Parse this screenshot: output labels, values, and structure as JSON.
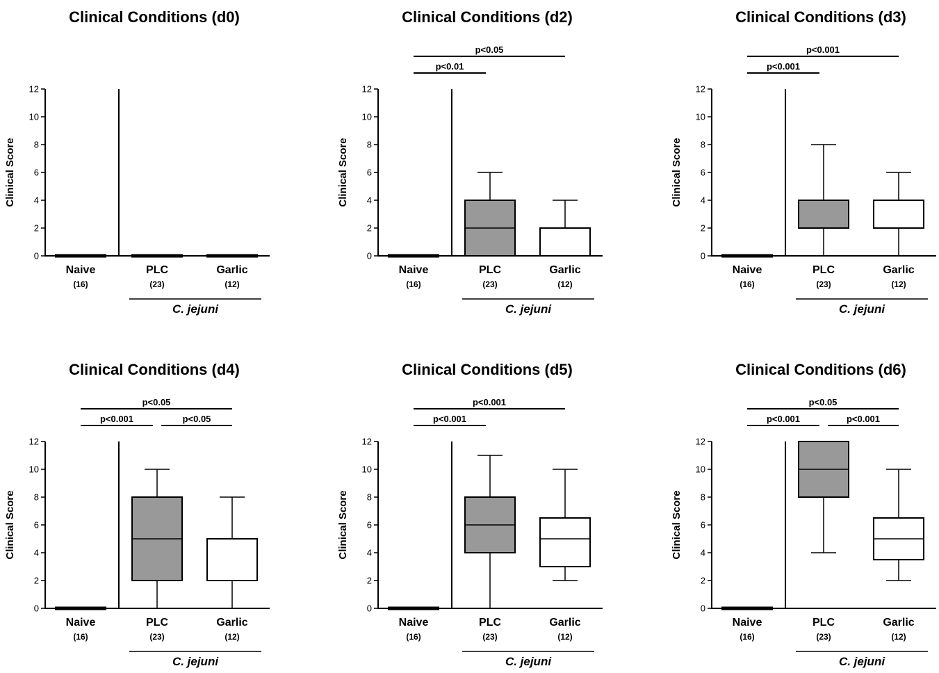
{
  "chart_data": [
    {
      "type": "box",
      "title": "Clinical Conditions (d0)",
      "ylabel": "Clinical Score",
      "ylim": [
        0,
        12
      ],
      "yticks": [
        0,
        2,
        4,
        6,
        8,
        10,
        12
      ],
      "categories": [
        {
          "label": "Naive",
          "n": "(16)",
          "min": 0,
          "q1": 0,
          "median": 0,
          "q3": 0,
          "max": 0,
          "fill": "#ffffff"
        },
        {
          "label": "PLC",
          "n": "(23)",
          "min": 0,
          "q1": 0,
          "median": 0,
          "q3": 0,
          "max": 0,
          "fill": "#ffffff"
        },
        {
          "label": "Garlic",
          "n": "(12)",
          "min": 0,
          "q1": 0,
          "median": 0,
          "q3": 0,
          "max": 0,
          "fill": "#ffffff"
        }
      ],
      "group_label": "C. jejuni",
      "comparisons": []
    },
    {
      "type": "box",
      "title": "Clinical Conditions (d2)",
      "ylabel": "Clinical  Score",
      "ylim": [
        0,
        12
      ],
      "yticks": [
        0,
        2,
        4,
        6,
        8,
        10,
        12
      ],
      "categories": [
        {
          "label": "Naive",
          "n": "(16)",
          "min": 0,
          "q1": 0,
          "median": 0,
          "q3": 0,
          "max": 0,
          "fill": "#ffffff"
        },
        {
          "label": "PLC",
          "n": "(23)",
          "min": 0,
          "q1": 0,
          "median": 2,
          "q3": 4,
          "max": 6,
          "fill": "#999999"
        },
        {
          "label": "Garlic",
          "n": "(12)",
          "min": 0,
          "q1": 0,
          "median": 2,
          "q3": 2,
          "max": 4,
          "fill": "#ffffff"
        }
      ],
      "group_label": "C. jejuni",
      "comparisons": [
        {
          "from": 0,
          "to": 2,
          "label": "p<0.05",
          "level": 2
        },
        {
          "from": 0,
          "to": 1,
          "label": "p<0.01",
          "level": 1
        }
      ]
    },
    {
      "type": "box",
      "title": "Clinical Conditions (d3)",
      "ylabel": "Clinical  Score",
      "ylim": [
        0,
        12
      ],
      "yticks": [
        0,
        2,
        4,
        6,
        8,
        10,
        12
      ],
      "categories": [
        {
          "label": "Naive",
          "n": "(16)",
          "min": 0,
          "q1": 0,
          "median": 0,
          "q3": 0,
          "max": 0,
          "fill": "#ffffff"
        },
        {
          "label": "PLC",
          "n": "(23)",
          "min": 0,
          "q1": 2,
          "median": 2,
          "q3": 4,
          "max": 8,
          "fill": "#999999"
        },
        {
          "label": "Garlic",
          "n": "(12)",
          "min": 0,
          "q1": 2,
          "median": 2,
          "q3": 4,
          "max": 6,
          "fill": "#ffffff"
        }
      ],
      "group_label": "C. jejuni",
      "comparisons": [
        {
          "from": 0,
          "to": 2,
          "label": "p<0.001",
          "level": 2
        },
        {
          "from": 0,
          "to": 1,
          "label": "p<0.001",
          "level": 1
        }
      ]
    },
    {
      "type": "box",
      "title": "Clinical Conditions (d4)",
      "ylabel": "Clinical  Score",
      "ylim": [
        0,
        12
      ],
      "yticks": [
        0,
        2,
        4,
        6,
        8,
        10,
        12
      ],
      "categories": [
        {
          "label": "Naive",
          "n": "(16)",
          "min": 0,
          "q1": 0,
          "median": 0,
          "q3": 0,
          "max": 0,
          "fill": "#ffffff"
        },
        {
          "label": "PLC",
          "n": "(23)",
          "min": 0,
          "q1": 2,
          "median": 5,
          "q3": 8,
          "max": 10,
          "fill": "#999999"
        },
        {
          "label": "Garlic",
          "n": "(12)",
          "min": 0,
          "q1": 2,
          "median": 2,
          "q3": 5,
          "max": 8,
          "fill": "#ffffff"
        }
      ],
      "group_label": "C. jejuni",
      "comparisons": [
        {
          "from": 0,
          "to": 2,
          "label": "p<0.05",
          "level": 2
        },
        {
          "from": 0,
          "to": 1,
          "label": "p<0.001",
          "level": 1
        },
        {
          "from": 1,
          "to": 2,
          "label": "p<0.05",
          "level": 1
        }
      ]
    },
    {
      "type": "box",
      "title": "Clinical Conditions (d5)",
      "ylabel": "Clinical  Score",
      "ylim": [
        0,
        12
      ],
      "yticks": [
        0,
        2,
        4,
        6,
        8,
        10,
        12
      ],
      "categories": [
        {
          "label": "Naive",
          "n": "(16)",
          "min": 0,
          "q1": 0,
          "median": 0,
          "q3": 0,
          "max": 0,
          "fill": "#ffffff"
        },
        {
          "label": "PLC",
          "n": "(23)",
          "min": 0,
          "q1": 4,
          "median": 6,
          "q3": 8,
          "max": 11,
          "fill": "#999999"
        },
        {
          "label": "Garlic",
          "n": "(12)",
          "min": 2,
          "q1": 3,
          "median": 5,
          "q3": 6.5,
          "max": 10,
          "fill": "#ffffff"
        }
      ],
      "group_label": "C. jejuni",
      "comparisons": [
        {
          "from": 0,
          "to": 2,
          "label": "p<0.001",
          "level": 2
        },
        {
          "from": 0,
          "to": 1,
          "label": "p<0.001",
          "level": 1
        }
      ]
    },
    {
      "type": "box",
      "title": "Clinical Conditions (d6)",
      "ylabel": "Clinical  Score",
      "ylim": [
        0,
        12
      ],
      "yticks": [
        0,
        2,
        4,
        6,
        8,
        10,
        12
      ],
      "categories": [
        {
          "label": "Naive",
          "n": "(16)",
          "min": 0,
          "q1": 0,
          "median": 0,
          "q3": 0,
          "max": 0,
          "fill": "#ffffff"
        },
        {
          "label": "PLC",
          "n": "(23)",
          "min": 4,
          "q1": 8,
          "median": 10,
          "q3": 12,
          "max": 12,
          "fill": "#999999"
        },
        {
          "label": "Garlic",
          "n": "(12)",
          "min": 2,
          "q1": 3.5,
          "median": 5,
          "q3": 6.5,
          "max": 10,
          "fill": "#ffffff"
        }
      ],
      "group_label": "C. jejuni",
      "comparisons": [
        {
          "from": 0,
          "to": 2,
          "label": "p<0.05",
          "level": 2
        },
        {
          "from": 0,
          "to": 1,
          "label": "p<0.001",
          "level": 1
        },
        {
          "from": 1,
          "to": 2,
          "label": "p<0.001",
          "level": 1
        }
      ]
    }
  ]
}
